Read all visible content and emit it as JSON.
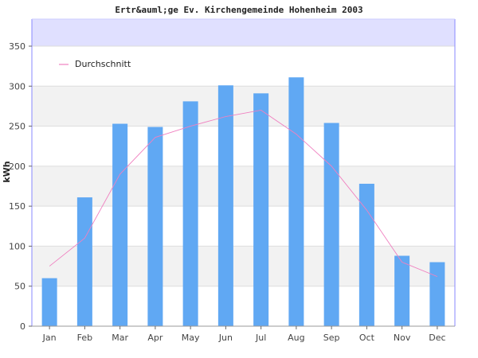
{
  "chart_data": {
    "type": "bar",
    "title": "Ertr&auml;ge Ev. Kirchengemeinde Hohenheim 2003",
    "xlabel": "",
    "ylabel": "kWh",
    "ylim": [
      0,
      350
    ],
    "yticks": [
      0,
      50,
      100,
      150,
      200,
      250,
      300,
      350
    ],
    "categories": [
      "Jan",
      "Feb",
      "Mar",
      "Apr",
      "May",
      "Jun",
      "Jul",
      "Aug",
      "Sep",
      "Oct",
      "Nov",
      "Dec"
    ],
    "series": [
      {
        "type": "bar",
        "values": [
          60,
          161,
          253,
          249,
          281,
          301,
          291,
          311,
          254,
          178,
          88,
          80
        ]
      },
      {
        "name": "Durchschnitt",
        "type": "line",
        "values": [
          75,
          110,
          190,
          236,
          250,
          262,
          270,
          240,
          200,
          145,
          80,
          62
        ]
      }
    ],
    "colors": {
      "bar": "#60a8f3",
      "line": "#f080c0",
      "band": "#f2f2f2",
      "top_band": "#e0e0ff",
      "grid": "#dddddd",
      "axis": "#8888ff"
    },
    "legend_position": "top-left"
  }
}
